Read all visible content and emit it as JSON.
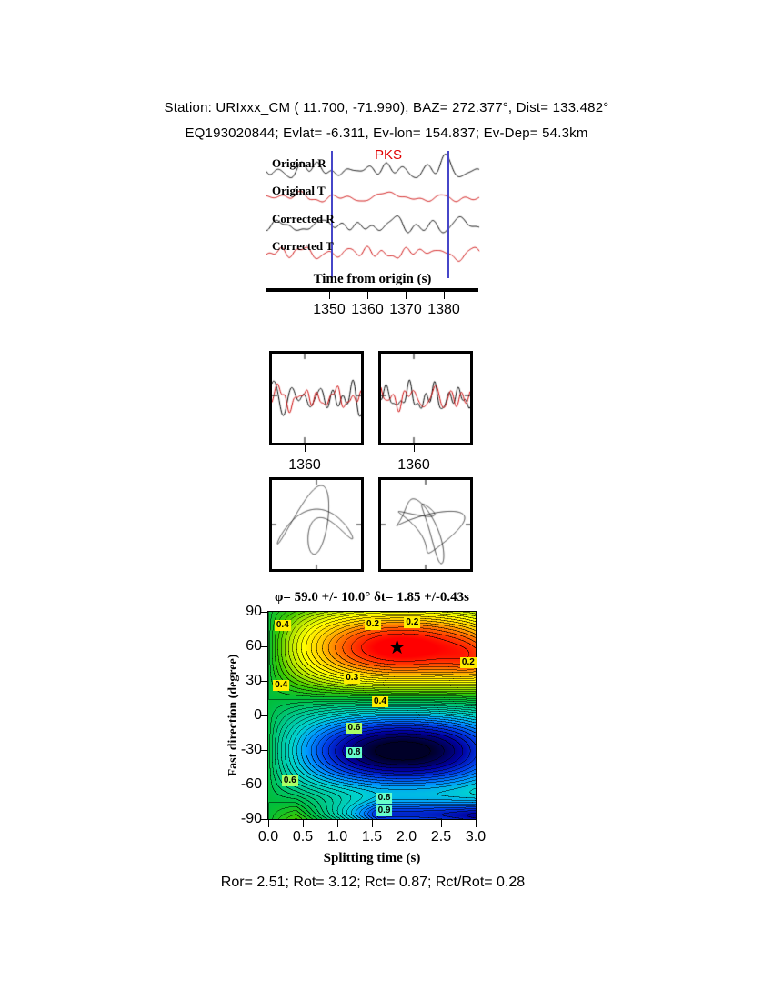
{
  "header": {
    "line1": "Station: URIxxx_CM (  11.700,  -71.990), BAZ=  272.377°, Dist=  133.482°",
    "line2": "EQ193020844; Evlat=  -6.311, Ev-lon= 154.837; Ev-Dep= 54.3km"
  },
  "waveforms": {
    "phase_label": "PKS",
    "axis_label": "Time from origin (s)",
    "ticks": [
      "1350",
      "1360",
      "1370",
      "1380"
    ],
    "window_line_color": "#4646c8",
    "traces": [
      {
        "label": "Original R",
        "color": "#000000",
        "seed": 11,
        "amp": 14
      },
      {
        "label": "Original T",
        "color": "#cc0000",
        "seed": 22,
        "amp": 10
      },
      {
        "label": "Corrected R",
        "color": "#000000",
        "seed": 33,
        "amp": 15
      },
      {
        "label": "Corrected T",
        "color": "#cc0000",
        "seed": 44,
        "amp": 10
      }
    ]
  },
  "zoom_panels": [
    {
      "tick_label": "1360",
      "series": [
        {
          "color": "#000000",
          "seed": 55,
          "amp": 20
        },
        {
          "color": "#cc0000",
          "seed": 66,
          "amp": 16
        }
      ]
    },
    {
      "tick_label": "1360",
      "series": [
        {
          "color": "#000000",
          "seed": 77,
          "amp": 20
        },
        {
          "color": "#cc0000",
          "seed": 88,
          "amp": 15
        }
      ]
    }
  ],
  "particle_panels": [
    {
      "seed": 101,
      "components": 5,
      "fmax": 4
    },
    {
      "seed": 202,
      "components": 6,
      "fmax": 7
    }
  ],
  "chart_data": {
    "type": "heatmap",
    "title": "φ= 59.0 +/- 10.0° δt= 1.85 +/-0.43s",
    "xlabel": "Splitting time (s)",
    "ylabel": "Fast direction (degree)",
    "xlim": [
      0.0,
      3.0
    ],
    "ylim": [
      -90,
      90
    ],
    "xticks": [
      "0.0",
      "0.5",
      "1.0",
      "1.5",
      "2.0",
      "2.5",
      "3.0"
    ],
    "yticks": [
      "90",
      "60",
      "30",
      "0",
      "-30",
      "-60",
      "-90"
    ],
    "best_fit": {
      "phi_deg": 59.0,
      "phi_err_deg": 10.0,
      "dt_s": 1.85,
      "dt_err_s": 0.43
    },
    "contour_interval": 0.025,
    "surface": {
      "amplitude": 0.52,
      "period_s": 3.9,
      "bottom_band": 0.6
    },
    "palette": [
      [
        0.0,
        "#ff0000"
      ],
      [
        0.08,
        "#ff6600"
      ],
      [
        0.16,
        "#ffcc00"
      ],
      [
        0.24,
        "#ffff00"
      ],
      [
        0.32,
        "#b4e600"
      ],
      [
        0.4,
        "#3cc800"
      ],
      [
        0.5,
        "#00be3c"
      ],
      [
        0.6,
        "#00c88c"
      ],
      [
        0.7,
        "#00d2d2"
      ],
      [
        0.78,
        "#0096ff"
      ],
      [
        0.86,
        "#003ce6"
      ],
      [
        0.93,
        "#0000a0"
      ],
      [
        1.0,
        "#000028"
      ]
    ],
    "contour_labels": [
      {
        "text": "0.4",
        "fx": 0.065,
        "fy": 0.062,
        "bg": "#ffee00"
      },
      {
        "text": "0.2",
        "fx": 0.5,
        "fy": 0.055,
        "bg": "#ffee00"
      },
      {
        "text": "0.2",
        "fx": 0.69,
        "fy": 0.048,
        "bg": "#ffee00"
      },
      {
        "text": "0.2",
        "fx": 0.96,
        "fy": 0.24,
        "bg": "#ffee00"
      },
      {
        "text": "0.3",
        "fx": 0.4,
        "fy": 0.315,
        "bg": "#ffee00"
      },
      {
        "text": "0.4",
        "fx": 0.058,
        "fy": 0.35,
        "bg": "#ffee00"
      },
      {
        "text": "0.4",
        "fx": 0.535,
        "fy": 0.43,
        "bg": "#ffee00"
      },
      {
        "text": "0.6",
        "fx": 0.41,
        "fy": 0.555,
        "bg": "#aaff66"
      },
      {
        "text": "0.8",
        "fx": 0.41,
        "fy": 0.675,
        "bg": "#66ffcc"
      },
      {
        "text": "0.6",
        "fx": 0.1,
        "fy": 0.81,
        "bg": "#aaff66"
      },
      {
        "text": "0.8",
        "fx": 0.555,
        "fy": 0.895,
        "bg": "#66ffcc"
      },
      {
        "text": "0.9",
        "fx": 0.555,
        "fy": 0.955,
        "bg": "#66ffcc"
      }
    ]
  },
  "footer": {
    "line": "Ror= 2.51; Rot= 3.12; Rct= 0.87; Rct/Rot= 0.28"
  }
}
